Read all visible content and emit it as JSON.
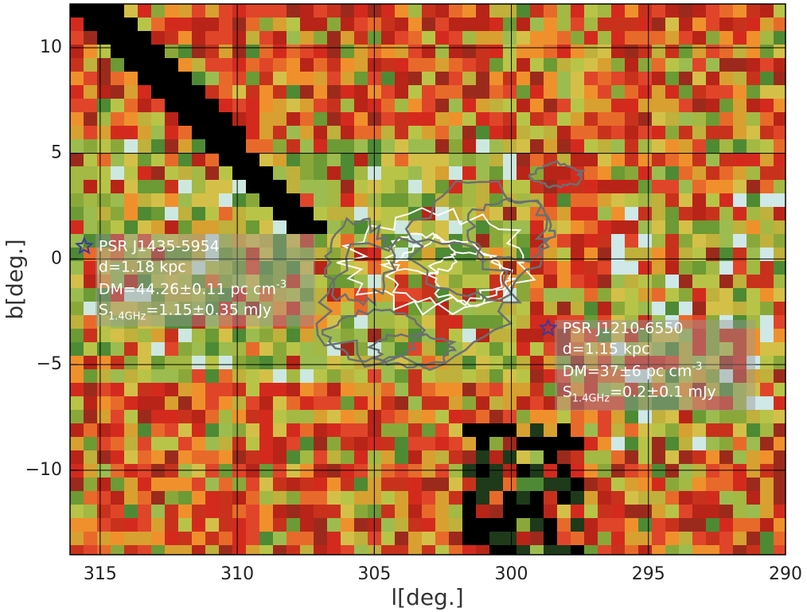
{
  "chart_data": {
    "type": "image",
    "x_label": "l[deg.]",
    "y_label": "b[deg.]",
    "xlim": [
      316.1,
      290
    ],
    "ylim": [
      -14,
      12.07
    ],
    "xticks": [
      315,
      310,
      305,
      300,
      295,
      290
    ],
    "yticks": [
      10,
      5,
      0,
      {
        "value": -5,
        "label": "−5"
      },
      {
        "value": -10,
        "label": "−10"
      }
    ],
    "grid": true,
    "sources": [
      {
        "name": "PSR J1435-5954",
        "l": 315.58,
        "b": 0.6,
        "distance": "d=1.18 kpc",
        "dm": {
          "text": "DM=44.26±0.11 pc cm",
          "sup": "-3"
        },
        "flux": {
          "text": "S",
          "sub": "1.4GHz",
          "rest": "=1.15±0.35 mJy"
        }
      },
      {
        "name": "PSR J1210-6550",
        "l": 298.66,
        "b": -3.28,
        "distance": "d=1.15 kpc",
        "dm": {
          "text": "DM=37±6 pc cm",
          "sup": "-3"
        },
        "flux": {
          "text": "S",
          "sub": "1.4GHz",
          "rest": "=0.2±0.1 mJy"
        }
      }
    ]
  }
}
